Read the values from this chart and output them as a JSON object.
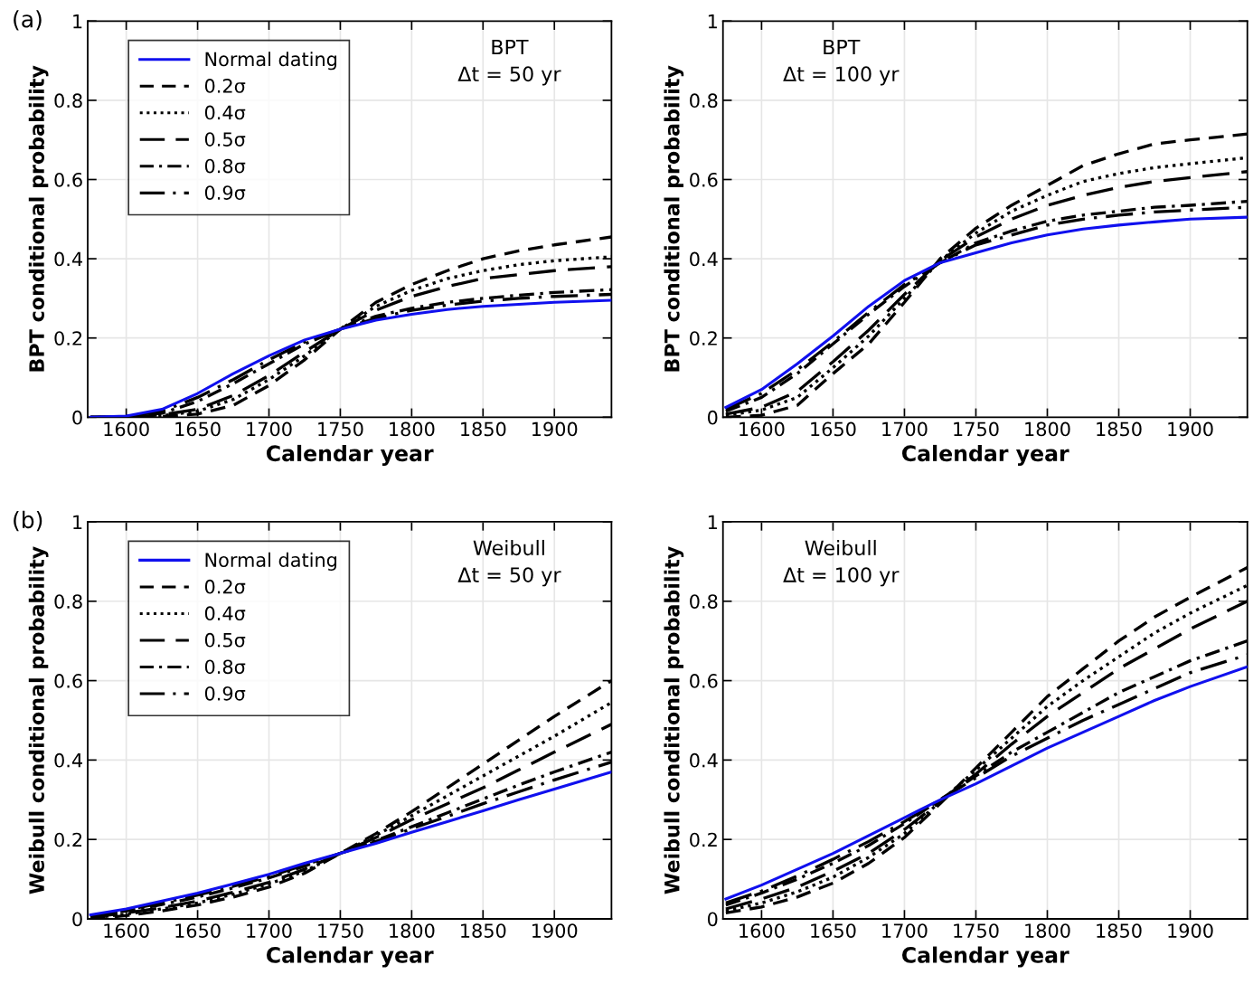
{
  "chart_data": [
    {
      "type": "line",
      "xlabel": "Calendar year",
      "ylabel": "BPT conditional probability",
      "annotations": [
        "(a)",
        "BPT",
        "Δt = 50 yr"
      ],
      "legend": "top left",
      "grid": true,
      "xlim": [
        1573,
        1940
      ],
      "ylim": [
        0,
        1
      ],
      "xticks": [
        1600,
        1650,
        1700,
        1750,
        1800,
        1850,
        1900
      ],
      "yticks": [
        0,
        0.2,
        0.4,
        0.6,
        0.8,
        1
      ],
      "x": [
        1575,
        1600,
        1625,
        1650,
        1675,
        1700,
        1725,
        1750,
        1775,
        1800,
        1825,
        1850,
        1875,
        1900,
        1940
      ],
      "series": [
        {
          "name": "Normal dating",
          "color": "#1010ee",
          "line_style": "solid",
          "values": [
            0,
            0.003,
            0.02,
            0.06,
            0.11,
            0.155,
            0.195,
            0.222,
            0.245,
            0.26,
            0.272,
            0.28,
            0.285,
            0.29,
            0.295
          ]
        },
        {
          "name": "0.2σ",
          "color": "#000000",
          "line_style": "dashed",
          "values": [
            0,
            0,
            0.002,
            0.008,
            0.03,
            0.08,
            0.145,
            0.222,
            0.29,
            0.335,
            0.37,
            0.4,
            0.42,
            0.435,
            0.455
          ]
        },
        {
          "name": "0.4σ",
          "color": "#000000",
          "line_style": "dotted",
          "values": [
            0,
            0,
            0.004,
            0.015,
            0.045,
            0.095,
            0.155,
            0.222,
            0.28,
            0.32,
            0.35,
            0.37,
            0.385,
            0.395,
            0.405
          ]
        },
        {
          "name": "0.5σ",
          "color": "#000000",
          "line_style": "longdash",
          "values": [
            0,
            0,
            0.006,
            0.02,
            0.055,
            0.105,
            0.165,
            0.222,
            0.27,
            0.305,
            0.33,
            0.35,
            0.36,
            0.37,
            0.38
          ]
        },
        {
          "name": "0.8σ",
          "color": "#000000",
          "line_style": "dashdot",
          "values": [
            0,
            0.001,
            0.01,
            0.04,
            0.085,
            0.135,
            0.185,
            0.222,
            0.255,
            0.275,
            0.29,
            0.3,
            0.308,
            0.315,
            0.322
          ]
        },
        {
          "name": "0.9σ",
          "color": "#000000",
          "line_style": "longdashdot",
          "values": [
            0,
            0.002,
            0.015,
            0.05,
            0.095,
            0.145,
            0.19,
            0.222,
            0.25,
            0.27,
            0.283,
            0.293,
            0.3,
            0.305,
            0.31
          ]
        }
      ]
    },
    {
      "type": "line",
      "xlabel": "Calendar year",
      "ylabel": "BPT conditional probability",
      "annotations": [
        "BPT",
        "Δt = 100 yr"
      ],
      "grid": true,
      "xlim": [
        1573,
        1940
      ],
      "ylim": [
        0,
        1
      ],
      "xticks": [
        1600,
        1650,
        1700,
        1750,
        1800,
        1850,
        1900
      ],
      "yticks": [
        0,
        0.2,
        0.4,
        0.6,
        0.8,
        1
      ],
      "x": [
        1575,
        1600,
        1625,
        1650,
        1675,
        1700,
        1725,
        1750,
        1775,
        1800,
        1825,
        1850,
        1875,
        1900,
        1940
      ],
      "series": [
        {
          "color": "#1010ee",
          "line_style": "solid",
          "values": [
            0.025,
            0.07,
            0.135,
            0.205,
            0.28,
            0.345,
            0.39,
            0.415,
            0.44,
            0.46,
            0.475,
            0.485,
            0.493,
            0.5,
            0.505
          ]
        },
        {
          "color": "#000000",
          "line_style": "dashed",
          "values": [
            0,
            0.005,
            0.03,
            0.11,
            0.185,
            0.29,
            0.4,
            0.477,
            0.535,
            0.585,
            0.635,
            0.665,
            0.69,
            0.7,
            0.715
          ]
        },
        {
          "color": "#000000",
          "line_style": "dotted",
          "values": [
            0.005,
            0.018,
            0.05,
            0.125,
            0.205,
            0.3,
            0.395,
            0.465,
            0.52,
            0.56,
            0.595,
            0.615,
            0.63,
            0.64,
            0.655
          ]
        },
        {
          "color": "#000000",
          "line_style": "longdash",
          "values": [
            0.008,
            0.025,
            0.065,
            0.14,
            0.22,
            0.31,
            0.395,
            0.455,
            0.5,
            0.535,
            0.56,
            0.58,
            0.595,
            0.605,
            0.62
          ]
        },
        {
          "color": "#000000",
          "line_style": "dashdot",
          "values": [
            0.015,
            0.05,
            0.11,
            0.185,
            0.26,
            0.33,
            0.39,
            0.44,
            0.47,
            0.495,
            0.51,
            0.52,
            0.53,
            0.535,
            0.545
          ]
        },
        {
          "color": "#000000",
          "line_style": "longdashdot",
          "values": [
            0.02,
            0.06,
            0.12,
            0.19,
            0.265,
            0.335,
            0.39,
            0.435,
            0.46,
            0.485,
            0.5,
            0.51,
            0.518,
            0.523,
            0.53
          ]
        }
      ]
    },
    {
      "type": "line",
      "xlabel": "Calendar year",
      "ylabel": "Weibull conditional probability",
      "annotations": [
        "(b)",
        "Weibull",
        "Δt = 50 yr"
      ],
      "legend": "top left",
      "grid": true,
      "xlim": [
        1573,
        1940
      ],
      "ylim": [
        0,
        1
      ],
      "xticks": [
        1600,
        1650,
        1700,
        1750,
        1800,
        1850,
        1900
      ],
      "yticks": [
        0,
        0.2,
        0.4,
        0.6,
        0.8,
        1
      ],
      "x": [
        1575,
        1600,
        1625,
        1650,
        1675,
        1700,
        1725,
        1750,
        1775,
        1800,
        1825,
        1850,
        1875,
        1900,
        1940
      ],
      "series": [
        {
          "name": "Normal dating",
          "color": "#1010ee",
          "line_style": "solid",
          "values": [
            0.01,
            0.025,
            0.045,
            0.065,
            0.088,
            0.112,
            0.14,
            0.165,
            0.19,
            0.218,
            0.245,
            0.272,
            0.3,
            0.327,
            0.37
          ]
        },
        {
          "name": "0.2σ",
          "color": "#000000",
          "line_style": "dashed",
          "values": [
            0,
            0.008,
            0.02,
            0.035,
            0.055,
            0.08,
            0.115,
            0.165,
            0.215,
            0.27,
            0.33,
            0.39,
            0.45,
            0.51,
            0.6
          ]
        },
        {
          "name": "0.4σ",
          "color": "#000000",
          "line_style": "dotted",
          "values": [
            0.002,
            0.012,
            0.025,
            0.04,
            0.062,
            0.088,
            0.12,
            0.165,
            0.21,
            0.26,
            0.31,
            0.36,
            0.41,
            0.46,
            0.545
          ]
        },
        {
          "name": "0.5σ",
          "color": "#000000",
          "line_style": "longdash",
          "values": [
            0.004,
            0.015,
            0.028,
            0.045,
            0.067,
            0.092,
            0.125,
            0.165,
            0.205,
            0.25,
            0.29,
            0.33,
            0.375,
            0.42,
            0.49
          ]
        },
        {
          "name": "0.8σ",
          "color": "#000000",
          "line_style": "dashdot",
          "values": [
            0.007,
            0.02,
            0.036,
            0.055,
            0.078,
            0.103,
            0.133,
            0.165,
            0.197,
            0.232,
            0.267,
            0.302,
            0.337,
            0.37,
            0.42
          ]
        },
        {
          "name": "0.9σ",
          "color": "#000000",
          "line_style": "longdashdot",
          "values": [
            0.008,
            0.022,
            0.04,
            0.06,
            0.082,
            0.107,
            0.136,
            0.165,
            0.195,
            0.227,
            0.258,
            0.29,
            0.32,
            0.35,
            0.395
          ]
        }
      ]
    },
    {
      "type": "line",
      "xlabel": "Calendar year",
      "ylabel": "Weibull conditional probability",
      "annotations": [
        "Weibull",
        "Δt = 100 yr"
      ],
      "grid": true,
      "xlim": [
        1573,
        1940
      ],
      "ylim": [
        0,
        1
      ],
      "xticks": [
        1600,
        1650,
        1700,
        1750,
        1800,
        1850,
        1900
      ],
      "yticks": [
        0,
        0.2,
        0.4,
        0.6,
        0.8,
        1
      ],
      "x": [
        1575,
        1600,
        1625,
        1650,
        1675,
        1700,
        1725,
        1750,
        1775,
        1800,
        1825,
        1850,
        1875,
        1900,
        1940
      ],
      "series": [
        {
          "color": "#1010ee",
          "line_style": "solid",
          "values": [
            0.05,
            0.085,
            0.125,
            0.165,
            0.21,
            0.255,
            0.3,
            0.34,
            0.385,
            0.43,
            0.47,
            0.51,
            0.55,
            0.585,
            0.635
          ]
        },
        {
          "color": "#000000",
          "line_style": "dashed",
          "values": [
            0.015,
            0.03,
            0.055,
            0.09,
            0.14,
            0.205,
            0.29,
            0.38,
            0.47,
            0.56,
            0.63,
            0.7,
            0.76,
            0.81,
            0.885
          ]
        },
        {
          "color": "#000000",
          "line_style": "dotted",
          "values": [
            0.02,
            0.04,
            0.068,
            0.105,
            0.155,
            0.215,
            0.295,
            0.375,
            0.455,
            0.535,
            0.6,
            0.66,
            0.72,
            0.77,
            0.84
          ]
        },
        {
          "color": "#000000",
          "line_style": "longdash",
          "values": [
            0.025,
            0.05,
            0.08,
            0.12,
            0.165,
            0.225,
            0.295,
            0.365,
            0.44,
            0.51,
            0.57,
            0.63,
            0.68,
            0.73,
            0.8
          ]
        },
        {
          "color": "#000000",
          "line_style": "dashdot",
          "values": [
            0.035,
            0.065,
            0.1,
            0.14,
            0.185,
            0.24,
            0.3,
            0.36,
            0.42,
            0.47,
            0.52,
            0.57,
            0.61,
            0.65,
            0.7
          ]
        },
        {
          "color": "#000000",
          "line_style": "longdashdot",
          "values": [
            0.04,
            0.07,
            0.108,
            0.15,
            0.195,
            0.245,
            0.3,
            0.355,
            0.41,
            0.455,
            0.5,
            0.54,
            0.58,
            0.62,
            0.665
          ]
        }
      ]
    }
  ]
}
